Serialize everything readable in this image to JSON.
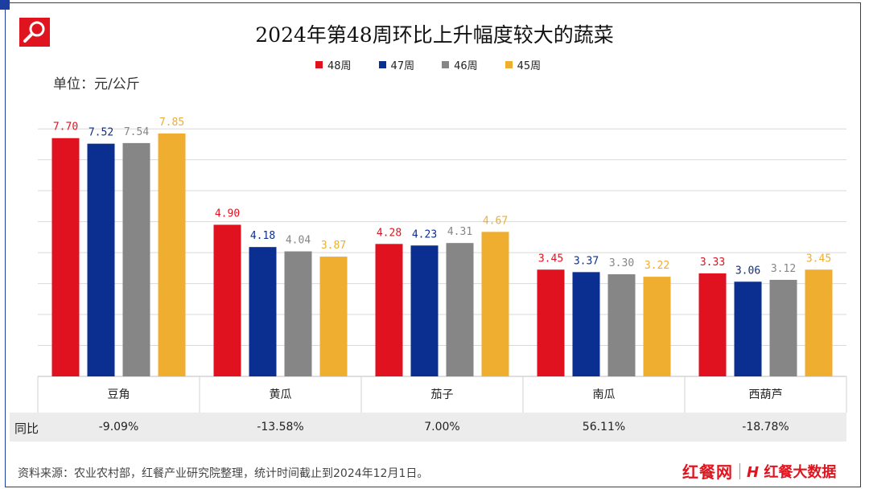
{
  "title": "2024年第48周环比上升幅度较大的蔬菜",
  "unit_label": "单位：元/公斤",
  "yoy_label": "同比",
  "footer_note": "资料来源：农业农村部，红餐产业研究院整理，统计时间截止到2024年12月1日。",
  "brand": {
    "name": "红餐网",
    "sub_mark": "H",
    "sub_name": "红餐大数据"
  },
  "colors": {
    "w48": "#e0121f",
    "w47": "#0b2f91",
    "w46": "#868686",
    "w45": "#efae2f",
    "frame": "#1b3ea0"
  },
  "chart_data": {
    "type": "bar",
    "title": "2024年第48周环比上升幅度较大的蔬菜",
    "ylabel": "单位：元/公斤",
    "xlabel": "",
    "ylim": [
      0,
      8
    ],
    "grid": true,
    "legend_position": "top",
    "categories": [
      "豆角",
      "黄瓜",
      "茄子",
      "南瓜",
      "西葫芦"
    ],
    "series": [
      {
        "name": "48周",
        "color": "#e0121f",
        "values": [
          7.7,
          4.9,
          4.28,
          3.45,
          3.33
        ],
        "labels": [
          "7.70",
          "4.90",
          "4.28",
          "3.45",
          "3.33"
        ]
      },
      {
        "name": "47周",
        "color": "#0b2f91",
        "values": [
          7.52,
          4.18,
          4.23,
          3.37,
          3.06
        ],
        "labels": [
          "7.52",
          "4.18",
          "4.23",
          "3.37",
          "3.06"
        ]
      },
      {
        "name": "46周",
        "color": "#868686",
        "values": [
          7.54,
          4.04,
          4.31,
          3.3,
          3.12
        ],
        "labels": [
          "7.54",
          "4.04",
          "4.31",
          "3.30",
          "3.12"
        ]
      },
      {
        "name": "45周",
        "color": "#efae2f",
        "values": [
          7.85,
          3.87,
          4.67,
          3.22,
          3.45
        ],
        "labels": [
          "7.85",
          "3.87",
          "4.67",
          "3.22",
          "3.45"
        ]
      }
    ],
    "yoy": [
      "-9.09%",
      "-13.58%",
      "7.00%",
      "56.11%",
      "-18.78%"
    ]
  }
}
